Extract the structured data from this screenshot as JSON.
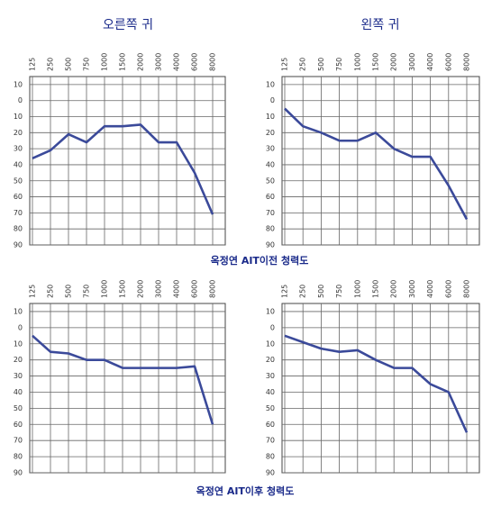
{
  "column_titles": [
    "오른쪽 귀",
    "왼쪽 귀"
  ],
  "captions": [
    "옥정연 AIT이전 청력도",
    "옥정연 AIT이후 청력도"
  ],
  "chart_data": [
    {
      "type": "line",
      "categories": [
        "125",
        "250",
        "500",
        "750",
        "1000",
        "1500",
        "2000",
        "3000",
        "4000",
        "6000",
        "8000"
      ],
      "values": [
        36,
        31,
        21,
        26,
        16,
        16,
        15,
        26,
        26,
        45,
        71
      ],
      "color": "#3b4a9a",
      "ylim": [
        -15,
        90
      ],
      "yticks": [
        {
          "value": -10,
          "label": "10"
        },
        0,
        10,
        20,
        30,
        40,
        50,
        60,
        70,
        80,
        90
      ],
      "grid": true
    },
    {
      "type": "line",
      "categories": [
        "125",
        "250",
        "500",
        "750",
        "1000",
        "1500",
        "2000",
        "3000",
        "4000",
        "6000",
        "8000"
      ],
      "values": [
        5,
        16,
        20,
        25,
        25,
        20,
        30,
        35,
        35,
        53,
        74
      ],
      "color": "#3b4a9a",
      "ylim": [
        -15,
        90
      ],
      "yticks": [
        {
          "value": -10,
          "label": "10"
        },
        0,
        10,
        20,
        30,
        40,
        50,
        60,
        70,
        80,
        90
      ],
      "grid": true
    },
    {
      "type": "line",
      "categories": [
        "125",
        "250",
        "500",
        "750",
        "1000",
        "1500",
        "2000",
        "3000",
        "4000",
        "6000",
        "8000"
      ],
      "values": [
        5,
        15,
        16,
        20,
        20,
        25,
        25,
        25,
        25,
        24,
        60
      ],
      "color": "#3b4a9a",
      "ylim": [
        -15,
        90
      ],
      "yticks": [
        {
          "value": -10,
          "label": "10"
        },
        0,
        10,
        20,
        30,
        40,
        50,
        60,
        70,
        80,
        90
      ],
      "grid": true
    },
    {
      "type": "line",
      "categories": [
        "125",
        "250",
        "500",
        "750",
        "1000",
        "1500",
        "2000",
        "3000",
        "4000",
        "6000",
        "8000"
      ],
      "values": [
        5,
        9,
        13,
        15,
        14,
        20,
        25,
        25,
        35,
        40,
        65
      ],
      "color": "#3b4a9a",
      "ylim": [
        -15,
        90
      ],
      "yticks": [
        {
          "value": -10,
          "label": "10"
        },
        0,
        10,
        20,
        30,
        40,
        50,
        60,
        70,
        80,
        90
      ],
      "grid": true
    }
  ]
}
